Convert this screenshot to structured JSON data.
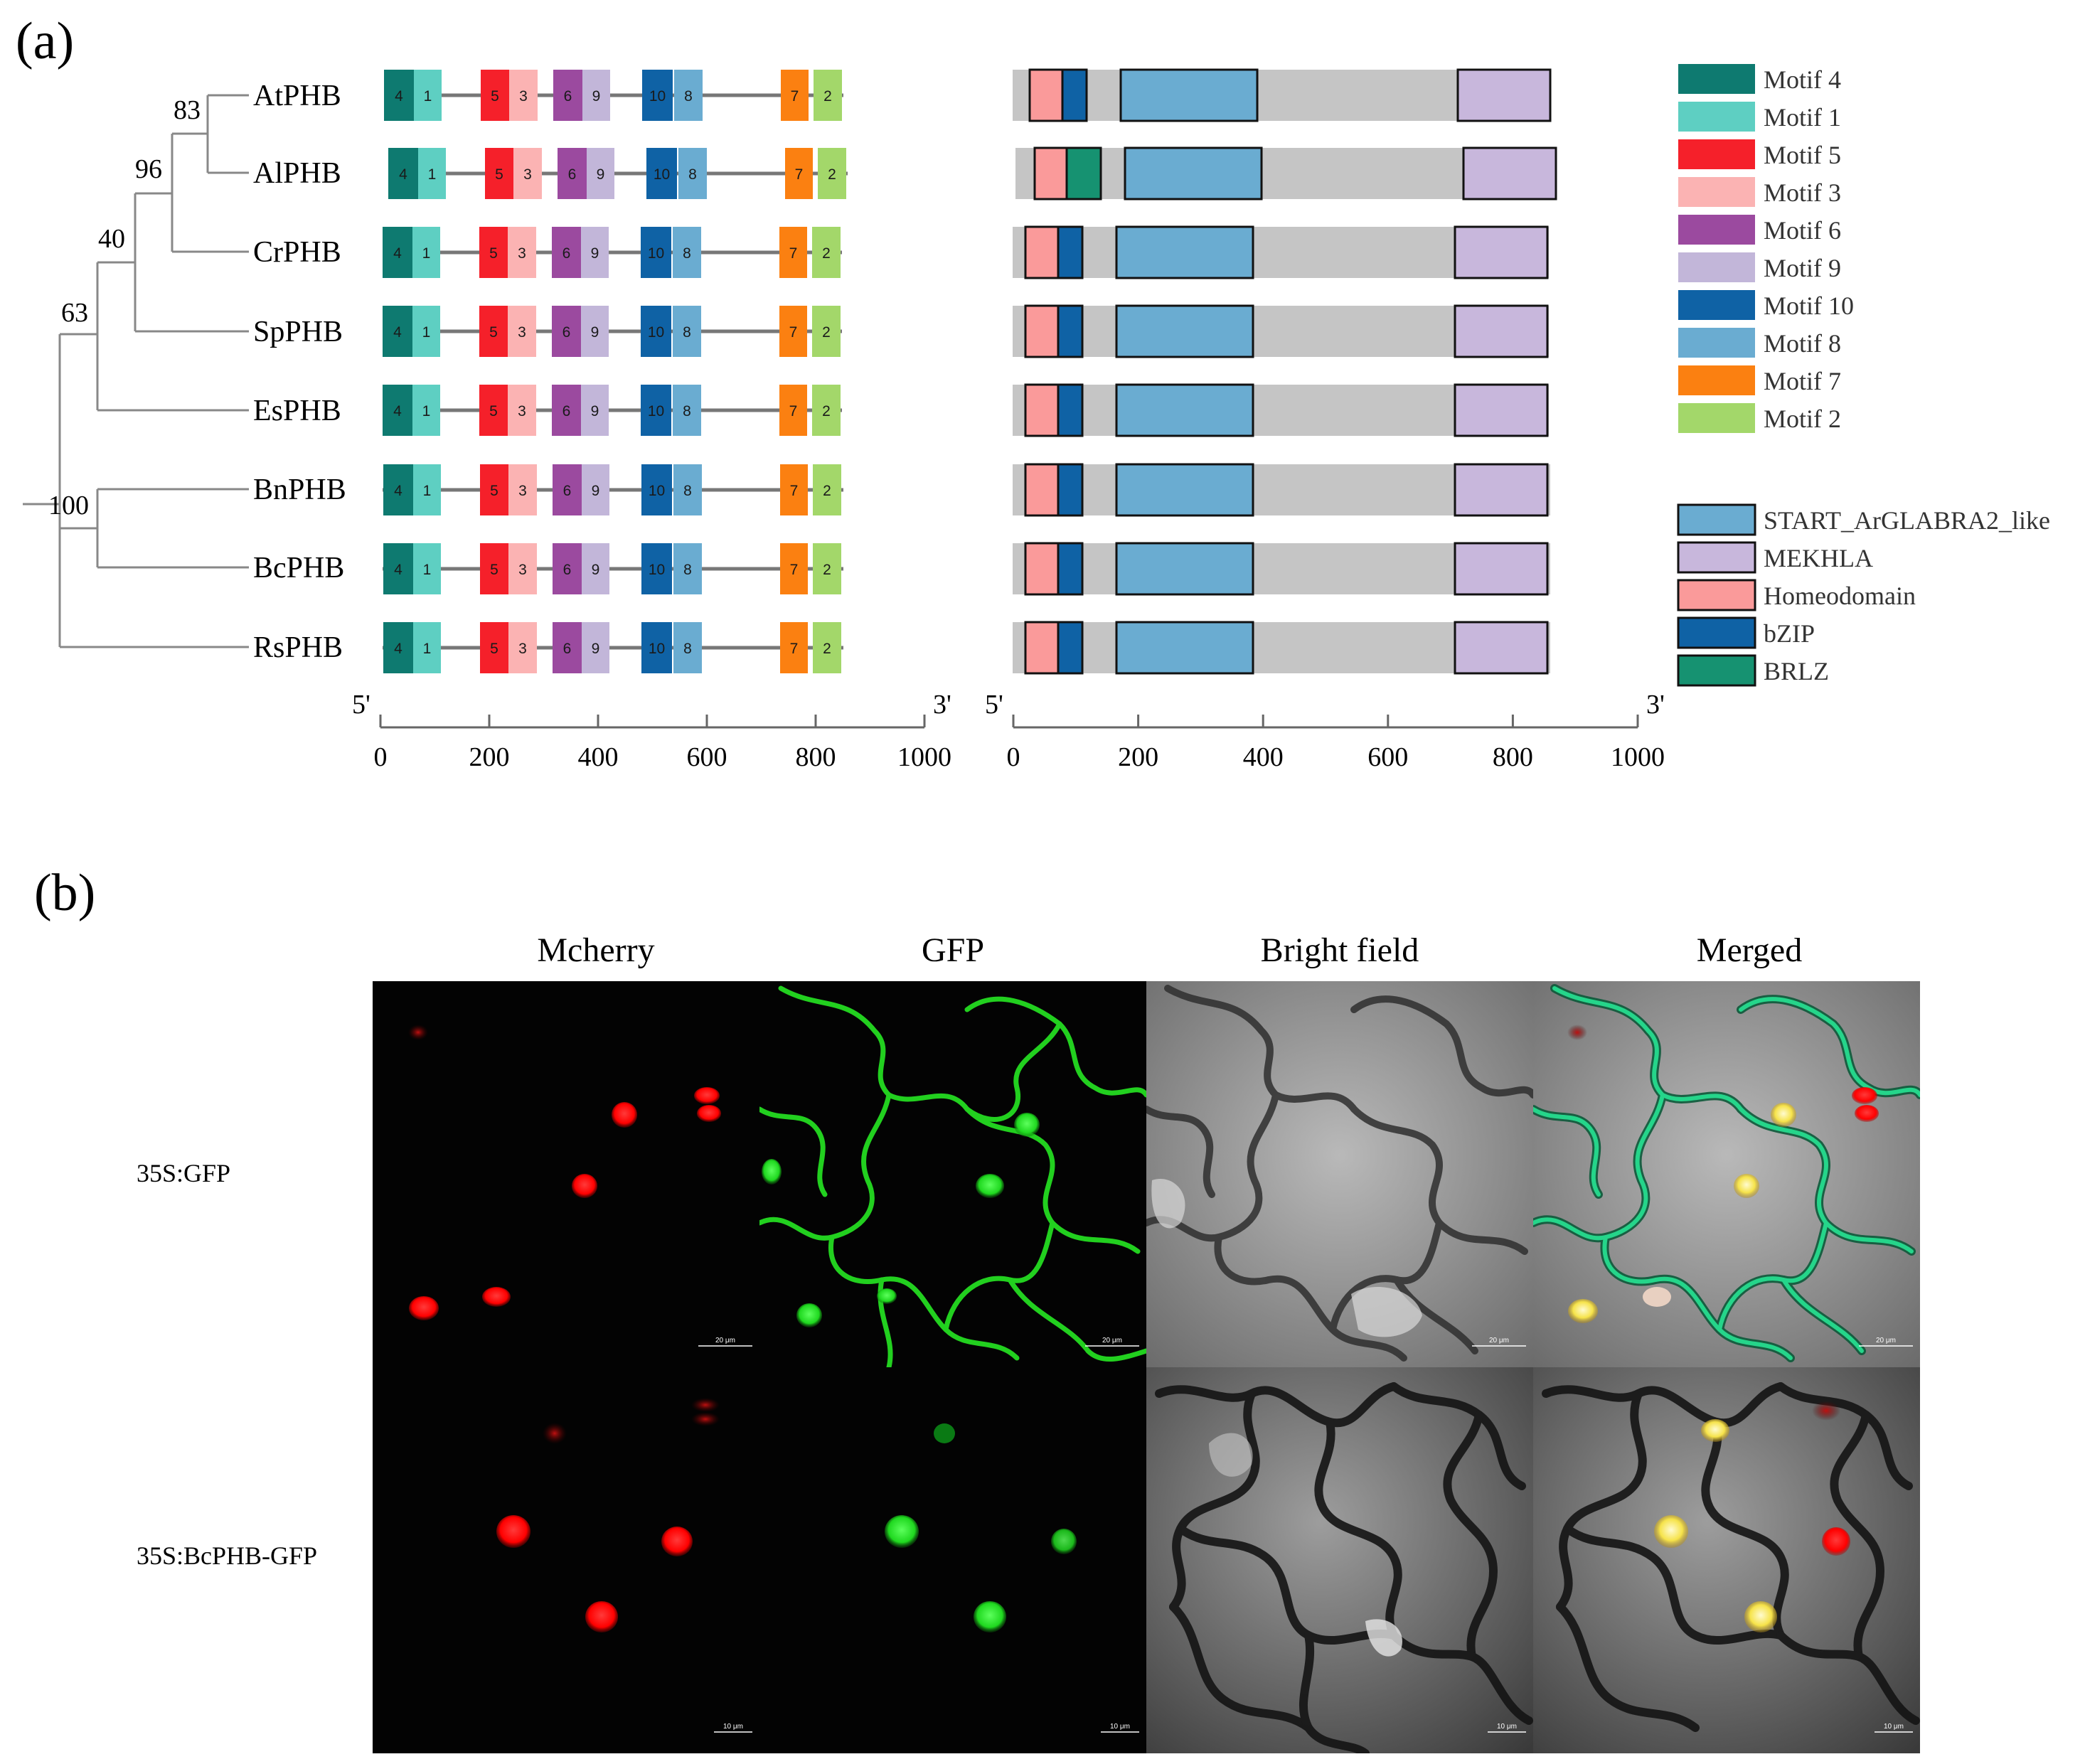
{
  "panel_a_label": "(a)",
  "panel_b_label": "(b)",
  "tree": {
    "species": [
      "AtPHB",
      "AlPHB",
      "CrPHB",
      "SpPHB",
      "EsPHB",
      "BnPHB",
      "BcPHB",
      "RsPHB"
    ],
    "bootstrap": [
      "83",
      "96",
      "40",
      "63",
      "100"
    ]
  },
  "motif_chart": {
    "motif_numbers": [
      "4",
      "1",
      "5",
      "3",
      "6",
      "9",
      "10",
      "8",
      "7",
      "2"
    ],
    "axis_ticks": [
      "0",
      "200",
      "400",
      "600",
      "800",
      "1000"
    ],
    "end5": "5'",
    "end3": "3'",
    "xlim": [
      0,
      1000
    ]
  },
  "domain_chart": {
    "axis_ticks": [
      "0",
      "200",
      "400",
      "600",
      "800",
      "1000"
    ],
    "end5": "5'",
    "end3": "3'",
    "xlim": [
      0,
      1000
    ]
  },
  "motif_legend": [
    {
      "label": "Motif 4",
      "color": "#0e7a70"
    },
    {
      "label": "Motif 1",
      "color": "#5ecfc2"
    },
    {
      "label": "Motif 5",
      "color": "#f5202a"
    },
    {
      "label": "Motif 3",
      "color": "#fbb3b3"
    },
    {
      "label": "Motif 6",
      "color": "#9b4a9f"
    },
    {
      "label": "Motif 9",
      "color": "#c2b6d9"
    },
    {
      "label": "Motif 10",
      "color": "#0f62a5"
    },
    {
      "label": "Motif 8",
      "color": "#6aacd1"
    },
    {
      "label": "Motif 7",
      "color": "#fb8011"
    },
    {
      "label": "Motif 2",
      "color": "#a3d76a"
    }
  ],
  "domain_legend": [
    {
      "label": "START_ArGLABRA2_like",
      "color": "#6aacd1"
    },
    {
      "label": "MEKHLA",
      "color": "#c8b7dc"
    },
    {
      "label": "Homeodomain",
      "color": "#fa9a9a"
    },
    {
      "label": "bZIP",
      "color": "#0f62a5"
    },
    {
      "label": "BRLZ",
      "color": "#169271"
    }
  ],
  "microscopy": {
    "columns": [
      "Mcherry",
      "GFP",
      "Bright field",
      "Merged"
    ],
    "rows": [
      "35S:GFP",
      "35S:BcPHB-GFP"
    ],
    "scale_bars": [
      "20 μm",
      "10 μm"
    ]
  }
}
